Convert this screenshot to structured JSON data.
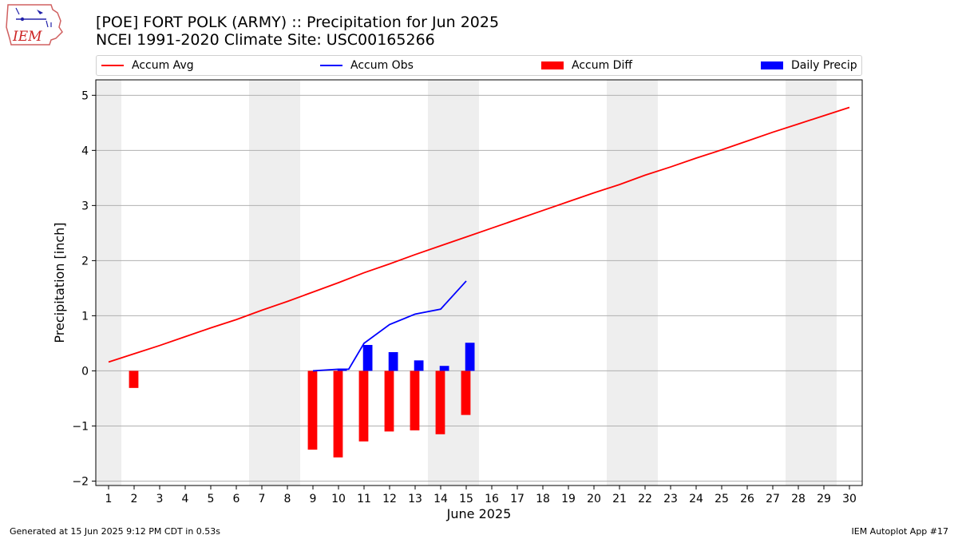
{
  "header": {
    "title_line1": "[POE] FORT POLK (ARMY) :: Precipitation for Jun 2025",
    "title_line2": "NCEI 1991-2020 Climate Site: USC00165266"
  },
  "logo": {
    "text": "IEM",
    "color": "#cc2222"
  },
  "legend": {
    "items": [
      {
        "label": "Accum Avg",
        "kind": "line",
        "color": "#ff0000"
      },
      {
        "label": "Accum Obs",
        "kind": "line",
        "color": "#0000ff"
      },
      {
        "label": "Accum Diff",
        "kind": "patch",
        "color": "#ff0000"
      },
      {
        "label": "Daily Precip",
        "kind": "patch",
        "color": "#0000ff"
      }
    ]
  },
  "footer": {
    "left": "Generated at 15 Jun 2025 9:12 PM CDT in 0.53s",
    "right": "IEM Autoplot App #17"
  },
  "chart_data": {
    "type": "bar",
    "xlabel": "June 2025",
    "ylabel": "Precipitation [inch]",
    "x_ticks": [
      1,
      2,
      3,
      4,
      5,
      6,
      7,
      8,
      9,
      10,
      11,
      12,
      13,
      14,
      15,
      16,
      17,
      18,
      19,
      20,
      21,
      22,
      23,
      24,
      25,
      26,
      27,
      28,
      29,
      30
    ],
    "xlim": [
      0.5,
      30.5
    ],
    "ylim": [
      -2.08,
      5.28
    ],
    "y_ticks": [
      -2,
      -1,
      0,
      1,
      2,
      3,
      4,
      5
    ],
    "grid": "horizontal",
    "weekend_shading": [
      [
        0.5,
        1.5
      ],
      [
        6.5,
        8.5
      ],
      [
        13.5,
        15.5
      ],
      [
        20.5,
        22.5
      ],
      [
        27.5,
        29.5
      ]
    ],
    "weekend_color": "#eeeeee",
    "series": [
      {
        "name": "Accum Avg",
        "kind": "line",
        "color": "#ff0000",
        "x": [
          1,
          2,
          3,
          4,
          5,
          6,
          7,
          8,
          9,
          10,
          11,
          12,
          13,
          14,
          15,
          16,
          17,
          18,
          19,
          20,
          21,
          22,
          23,
          24,
          25,
          26,
          27,
          28,
          29,
          30
        ],
        "values": [
          0.16,
          0.31,
          0.46,
          0.62,
          0.78,
          0.93,
          1.1,
          1.26,
          1.43,
          1.6,
          1.78,
          1.94,
          2.11,
          2.27,
          2.43,
          2.59,
          2.75,
          2.91,
          3.07,
          3.23,
          3.38,
          3.55,
          3.7,
          3.86,
          4.01,
          4.17,
          4.33,
          4.48,
          4.63,
          4.78
        ]
      },
      {
        "name": "Accum Obs",
        "kind": "line",
        "color": "#0000ff",
        "x": [
          9,
          10,
          10.4,
          11,
          12,
          13,
          14,
          15
        ],
        "values": [
          0.0,
          0.03,
          0.03,
          0.5,
          0.84,
          1.03,
          1.12,
          1.63
        ]
      },
      {
        "name": "Accum Diff",
        "kind": "bar",
        "color": "#ff0000",
        "x": [
          1,
          2,
          3,
          4,
          5,
          6,
          7,
          8,
          9,
          10,
          11,
          12,
          13,
          14,
          15
        ],
        "values": [
          0.0,
          -0.31,
          0.0,
          0.0,
          0.0,
          0.0,
          0.0,
          0.0,
          -1.43,
          -1.57,
          -1.28,
          -1.1,
          -1.08,
          -1.15,
          -0.8
        ]
      },
      {
        "name": "Daily Precip",
        "kind": "bar",
        "color": "#0000ff",
        "x": [
          9,
          10,
          11,
          12,
          13,
          14,
          15
        ],
        "values": [
          0.0,
          0.03,
          0.47,
          0.34,
          0.19,
          0.09,
          0.51
        ]
      }
    ]
  }
}
